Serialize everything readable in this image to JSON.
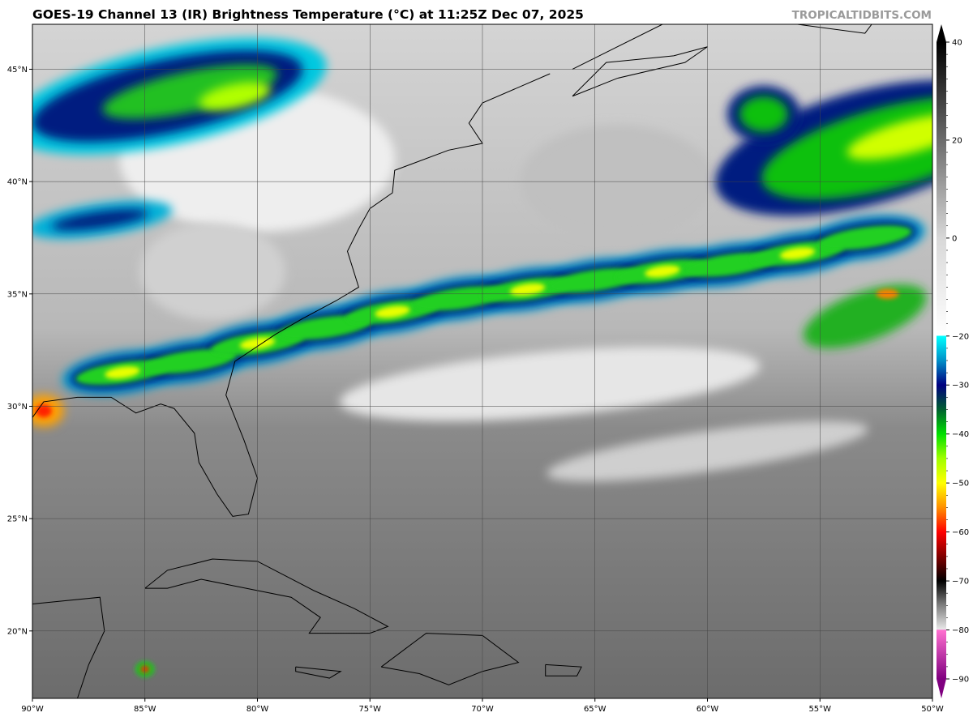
{
  "title": "GOES-19 Channel 13 (IR) Brightness Temperature (°C) at 11:25Z Dec 07, 2025",
  "watermark": "TROPICALTIDBITS.COM",
  "map": {
    "lon_range": [
      -90,
      -50
    ],
    "lat_range": [
      17,
      47
    ],
    "lon_ticks": [
      {
        "v": -90,
        "label": "90°W"
      },
      {
        "v": -85,
        "label": "85°W"
      },
      {
        "v": -80,
        "label": "80°W"
      },
      {
        "v": -75,
        "label": "75°W"
      },
      {
        "v": -70,
        "label": "70°W"
      },
      {
        "v": -65,
        "label": "65°W"
      },
      {
        "v": -60,
        "label": "60°W"
      },
      {
        "v": -55,
        "label": "55°W"
      },
      {
        "v": -50,
        "label": "50°W"
      }
    ],
    "lat_ticks": [
      {
        "v": 45,
        "label": "45°N"
      },
      {
        "v": 40,
        "label": "40°N"
      },
      {
        "v": 35,
        "label": "35°N"
      },
      {
        "v": 30,
        "label": "30°N"
      },
      {
        "v": 25,
        "label": "25°N"
      },
      {
        "v": 20,
        "label": "20°N"
      }
    ]
  },
  "colorbar": {
    "range": [
      -90,
      40
    ],
    "ticks": [
      "40",
      "20",
      "0",
      "−20",
      "−30",
      "−40",
      "−50",
      "−60",
      "−70",
      "−80",
      "−90"
    ],
    "tick_values": [
      40,
      20,
      0,
      -20,
      -30,
      -40,
      -50,
      -60,
      -70,
      -80,
      -90
    ],
    "stops": [
      {
        "v": 40,
        "c": "#000000"
      },
      {
        "v": 0,
        "c": "#d8d8d8"
      },
      {
        "v": -19.9,
        "c": "#ffffff"
      },
      {
        "v": -20,
        "c": "#00ffff"
      },
      {
        "v": -25,
        "c": "#0090c8"
      },
      {
        "v": -30,
        "c": "#000080"
      },
      {
        "v": -35,
        "c": "#006030"
      },
      {
        "v": -40,
        "c": "#00e000"
      },
      {
        "v": -45,
        "c": "#a0ff00"
      },
      {
        "v": -50,
        "c": "#ffff00"
      },
      {
        "v": -55,
        "c": "#ff9000"
      },
      {
        "v": -60,
        "c": "#ff0000"
      },
      {
        "v": -65,
        "c": "#800000"
      },
      {
        "v": -70,
        "c": "#000000"
      },
      {
        "v": -75,
        "c": "#808080"
      },
      {
        "v": -79.9,
        "c": "#e8e8e8"
      },
      {
        "v": -80,
        "c": "#ff70d0"
      },
      {
        "v": -90,
        "c": "#800080"
      }
    ]
  }
}
